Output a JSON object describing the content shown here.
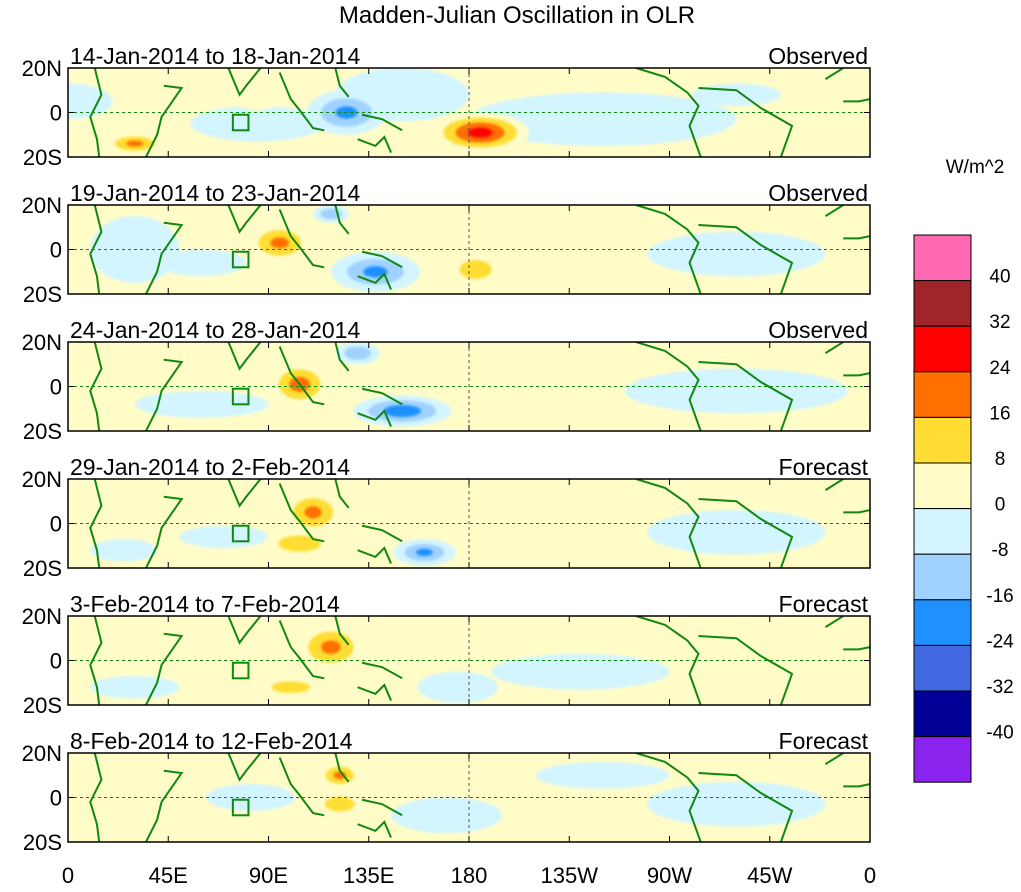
{
  "chart_data": {
    "type": "heatmap",
    "title": "Madden-Julian Oscillation in OLR",
    "units": "W/m^2",
    "x_ticks": [
      "0",
      "45E",
      "90E",
      "135E",
      "180",
      "135W",
      "90W",
      "45W",
      "0"
    ],
    "x_tick_lons": [
      0,
      45,
      90,
      135,
      180,
      225,
      270,
      315,
      360
    ],
    "y_ticks": [
      "20N",
      "0",
      "20S"
    ],
    "y_tick_lats": [
      20,
      0,
      -20
    ],
    "lat_range": [
      -20,
      20
    ],
    "lon_range": [
      0,
      360
    ],
    "colorbar": {
      "labels": [
        "40",
        "32",
        "24",
        "16",
        "8",
        "0",
        "-8",
        "-16",
        "-24",
        "-32",
        "-40"
      ],
      "colors": [
        "#ff69b4",
        "#a0252a",
        "#ff0000",
        "#ff7000",
        "#ffdd33",
        "#fffcc8",
        "#d2f5ff",
        "#a0d2ff",
        "#1e90ff",
        "#4169e1",
        "#000096",
        "#8b22ee"
      ]
    },
    "panels": [
      {
        "dates": "14-Jan-2014 to 18-Jan-2014",
        "kind": "Observed",
        "anomalies": [
          [
            30,
            -14,
            14,
            5,
            20
          ],
          [
            185,
            -9,
            22,
            9,
            30
          ],
          [
            125,
            0,
            18,
            10,
            -20
          ],
          [
            85,
            -5,
            30,
            8,
            -8
          ],
          [
            85,
            6,
            10,
            5,
            10
          ],
          [
            150,
            8,
            30,
            12,
            -4
          ],
          [
            240,
            -3,
            60,
            12,
            -4
          ],
          [
            300,
            8,
            20,
            5,
            -10
          ],
          [
            0,
            5,
            20,
            8,
            -6
          ]
        ]
      },
      {
        "dates": "19-Jan-2014 to 23-Jan-2014",
        "kind": "Observed",
        "anomalies": [
          [
            95,
            3,
            15,
            9,
            20
          ],
          [
            138,
            -10,
            20,
            9,
            -20
          ],
          [
            118,
            16,
            8,
            4,
            -18
          ],
          [
            183,
            -9,
            12,
            7,
            18
          ],
          [
            60,
            -6,
            20,
            6,
            -8
          ],
          [
            260,
            14,
            20,
            5,
            8
          ],
          [
            300,
            -2,
            40,
            10,
            -4
          ],
          [
            30,
            0,
            20,
            15,
            -4
          ]
        ]
      },
      {
        "dates": "24-Jan-2014 to 28-Jan-2014",
        "kind": "Observed",
        "anomalies": [
          [
            104,
            1,
            14,
            10,
            22
          ],
          [
            150,
            -11,
            22,
            7,
            -24
          ],
          [
            130,
            15,
            10,
            5,
            -18
          ],
          [
            35,
            8,
            20,
            8,
            8
          ],
          [
            60,
            -8,
            30,
            6,
            -6
          ],
          [
            215,
            14,
            12,
            5,
            10
          ],
          [
            300,
            -2,
            50,
            10,
            -4
          ]
        ]
      },
      {
        "dates": "29-Jan-2014 to 2-Feb-2014",
        "kind": "Forecast",
        "anomalies": [
          [
            110,
            5,
            14,
            10,
            20
          ],
          [
            104,
            -9,
            16,
            6,
            18
          ],
          [
            160,
            -13,
            14,
            6,
            -20
          ],
          [
            70,
            -6,
            20,
            5,
            -8
          ],
          [
            45,
            10,
            15,
            6,
            8
          ],
          [
            220,
            13,
            18,
            4,
            8
          ],
          [
            300,
            -4,
            40,
            10,
            -4
          ],
          [
            25,
            -12,
            15,
            5,
            -10
          ]
        ]
      },
      {
        "dates": "3-Feb-2014 to 7-Feb-2014",
        "kind": "Forecast",
        "anomalies": [
          [
            118,
            6,
            16,
            11,
            20
          ],
          [
            100,
            -12,
            20,
            6,
            12
          ],
          [
            175,
            -12,
            18,
            7,
            -10
          ],
          [
            80,
            5,
            20,
            6,
            8
          ],
          [
            30,
            -12,
            20,
            5,
            -8
          ],
          [
            230,
            -5,
            40,
            8,
            -4
          ],
          [
            300,
            10,
            25,
            6,
            6
          ]
        ]
      },
      {
        "dates": "8-Feb-2014 to 12-Feb-2014",
        "kind": "Forecast",
        "anomalies": [
          [
            122,
            10,
            10,
            6,
            20
          ],
          [
            122,
            -3,
            12,
            6,
            16
          ],
          [
            118,
            3,
            18,
            14,
            10
          ],
          [
            82,
            0,
            20,
            6,
            -10
          ],
          [
            240,
            10,
            30,
            6,
            -8
          ],
          [
            170,
            -8,
            25,
            8,
            -4
          ],
          [
            300,
            -3,
            40,
            10,
            -4
          ],
          [
            40,
            8,
            18,
            6,
            6
          ]
        ]
      }
    ]
  }
}
